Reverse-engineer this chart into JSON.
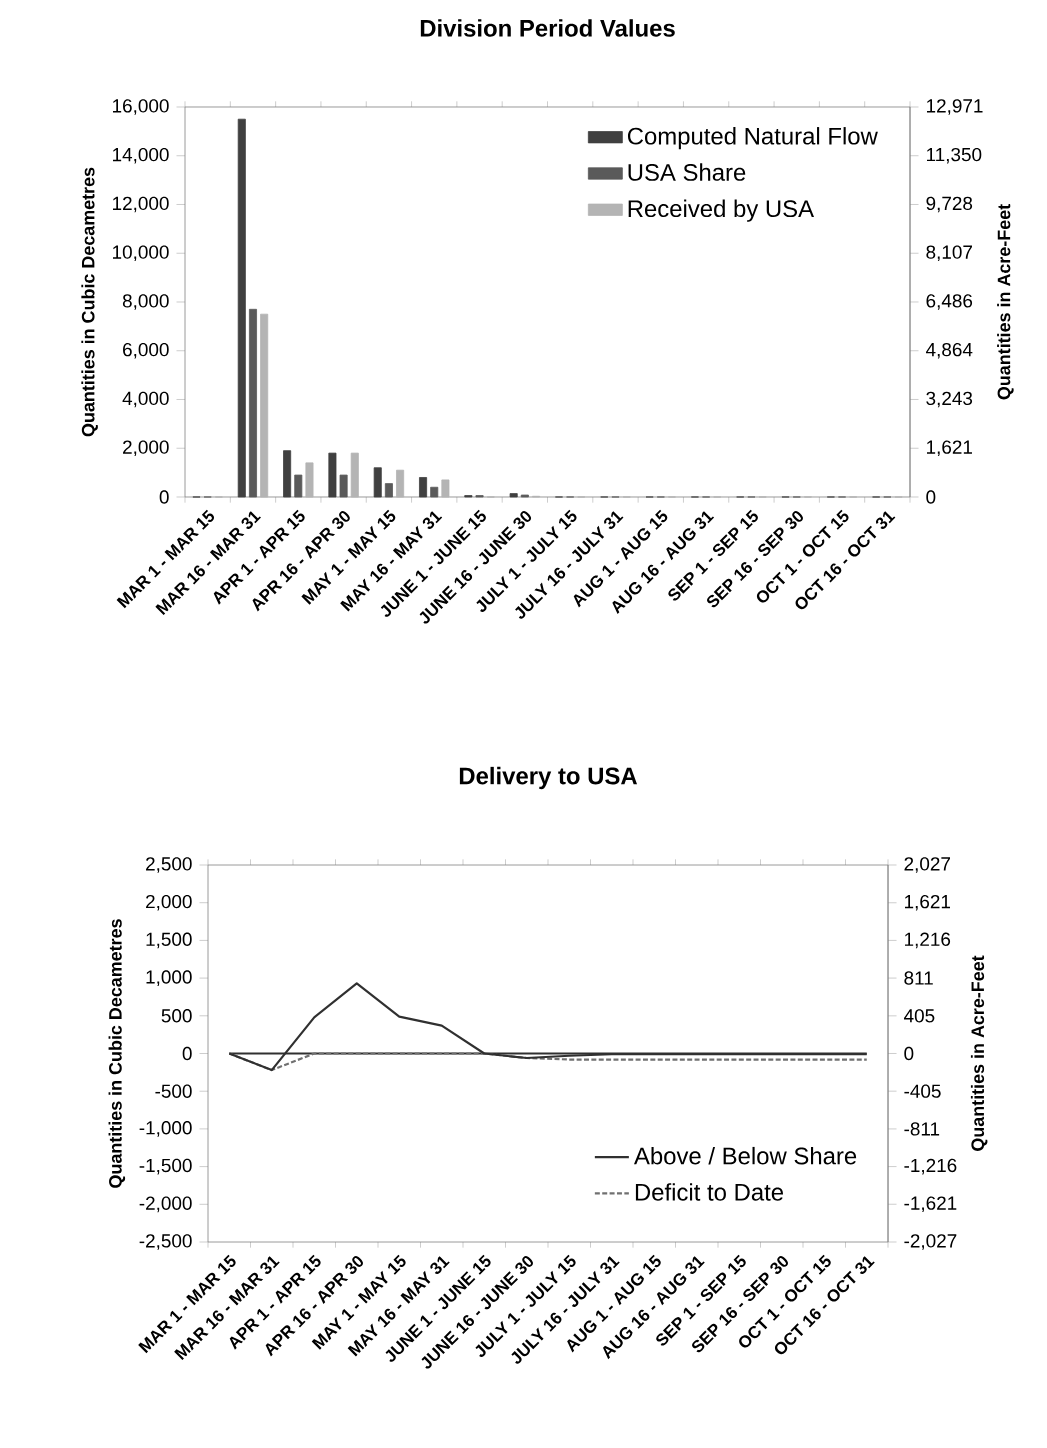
{
  "chart_data": [
    {
      "type": "bar",
      "title": "Division Period Values",
      "ylabel": "Quantities in Cubic Decametres",
      "y2label": "Quantities in Acre-Feet",
      "categories": [
        "MAR 1 - MAR 15",
        "MAR 16 - MAR 31",
        "APR 1 - APR 15",
        "APR 16 - APR 30",
        "MAY 1 - MAY 15",
        "MAY 16 - MAY 31",
        "JUNE 1 - JUNE 15",
        "JUNE 16 - JUNE 30",
        "JULY 1 - JULY 15",
        "JULY 16 - JULY 31",
        "AUG 1 - AUG 15",
        "AUG 16 - AUG 31",
        "SEP 1 - SEP 15",
        "SEP 16 - SEP 30",
        "OCT 1 - OCT 15",
        "OCT 16 - OCT 31"
      ],
      "series": [
        {
          "name": "Computed Natural Flow",
          "color": "#404040",
          "values": [
            0,
            15500,
            1900,
            1800,
            1200,
            800,
            60,
            140,
            0,
            0,
            0,
            0,
            0,
            0,
            0,
            0
          ]
        },
        {
          "name": "USA Share",
          "color": "#5a5a5a",
          "values": [
            0,
            7700,
            900,
            900,
            550,
            400,
            60,
            80,
            0,
            0,
            0,
            0,
            0,
            0,
            0,
            0
          ]
        },
        {
          "name": "Received by USA",
          "color": "#b4b4b4",
          "values": [
            0,
            7500,
            1400,
            1800,
            1100,
            700,
            0,
            30,
            0,
            0,
            0,
            0,
            0,
            0,
            0,
            0
          ]
        }
      ],
      "ylim": [
        0,
        16000
      ],
      "yticks": [
        {
          "value": 0,
          "label": "0"
        },
        {
          "value": 2000,
          "label": "2,000"
        },
        {
          "value": 4000,
          "label": "4,000"
        },
        {
          "value": 6000,
          "label": "6,000"
        },
        {
          "value": 8000,
          "label": "8,000"
        },
        {
          "value": 10000,
          "label": "10,000"
        },
        {
          "value": 12000,
          "label": "12,000"
        },
        {
          "value": 14000,
          "label": "14,000"
        },
        {
          "value": 16000,
          "label": "16,000"
        }
      ],
      "y2lim": [
        0,
        12971
      ],
      "y2ticks": [
        {
          "value": 0,
          "label": "0"
        },
        {
          "value": 1621,
          "label": "1,621"
        },
        {
          "value": 3243,
          "label": "3,243"
        },
        {
          "value": 4864,
          "label": "4,864"
        },
        {
          "value": 6486,
          "label": "6,486"
        },
        {
          "value": 8107,
          "label": "8,107"
        },
        {
          "value": 9728,
          "label": "9,728"
        },
        {
          "value": 11350,
          "label": "11,350"
        },
        {
          "value": 12971,
          "label": "12,971"
        }
      ],
      "legend": "top right"
    },
    {
      "type": "line",
      "title": "Delivery to USA",
      "ylabel": "Quantities in Cubic Decametres",
      "y2label": "Quantities in Acre-Feet",
      "categories": [
        "MAR 1 - MAR 15",
        "MAR 16 - MAR 31",
        "APR 1 - APR 15",
        "APR 16 - APR 30",
        "MAY 1 - MAY 15",
        "MAY 16 - MAY 31",
        "JUNE 1 - JUNE 15",
        "JUNE 16 - JUNE 30",
        "JULY 1 - JULY 15",
        "JULY 16 - JULY 31",
        "AUG 1 - AUG 15",
        "AUG 16 - AUG 31",
        "SEP 1 - SEP 15",
        "SEP 16 - SEP 30",
        "OCT 1 - OCT 15",
        "OCT 16 - OCT 31"
      ],
      "series": [
        {
          "color": "#303030",
          "line_style": "solid",
          "values": [
            0,
            0,
            0,
            0,
            0,
            0,
            0,
            0,
            0,
            0,
            0,
            0,
            0,
            0,
            0,
            0
          ]
        },
        {
          "name": "Deficit to Date",
          "color": "#707070",
          "line_style": "dashed",
          "values": [
            0,
            -220,
            0,
            0,
            0,
            0,
            0,
            -60,
            -80,
            -80,
            -80,
            -80,
            -80,
            -80,
            -80,
            -80
          ]
        },
        {
          "name": "Above / Below Share",
          "color": "#303030",
          "line_style": "solid",
          "values": [
            0,
            -220,
            480,
            930,
            490,
            370,
            0,
            -60,
            -30,
            -10,
            -10,
            -10,
            -10,
            -10,
            -10,
            -10
          ]
        }
      ],
      "ylim": [
        -2500,
        2500
      ],
      "yticks": [
        {
          "value": -2500,
          "label": "-2,500"
        },
        {
          "value": -2000,
          "label": "-2,000"
        },
        {
          "value": -1500,
          "label": "-1,500"
        },
        {
          "value": -1000,
          "label": "-1,000"
        },
        {
          "value": -500,
          "label": "-500"
        },
        {
          "value": 0,
          "label": "0"
        },
        {
          "value": 500,
          "label": "500"
        },
        {
          "value": 1000,
          "label": "1,000"
        },
        {
          "value": 1500,
          "label": "1,500"
        },
        {
          "value": 2000,
          "label": "2,000"
        },
        {
          "value": 2500,
          "label": "2,500"
        }
      ],
      "y2lim": [
        -2027,
        2027
      ],
      "y2ticks": [
        {
          "value": -2027,
          "label": "-2,027"
        },
        {
          "value": -1621,
          "label": "-1,621"
        },
        {
          "value": -1216,
          "label": "-1,216"
        },
        {
          "value": -811,
          "label": "-811"
        },
        {
          "value": -405,
          "label": "-405"
        },
        {
          "value": 0,
          "label": "0"
        },
        {
          "value": 405,
          "label": "405"
        },
        {
          "value": 811,
          "label": "811"
        },
        {
          "value": 1216,
          "label": "1,216"
        },
        {
          "value": 1621,
          "label": "1,621"
        },
        {
          "value": 2027,
          "label": "2,027"
        }
      ],
      "legend": "bottom right"
    }
  ]
}
